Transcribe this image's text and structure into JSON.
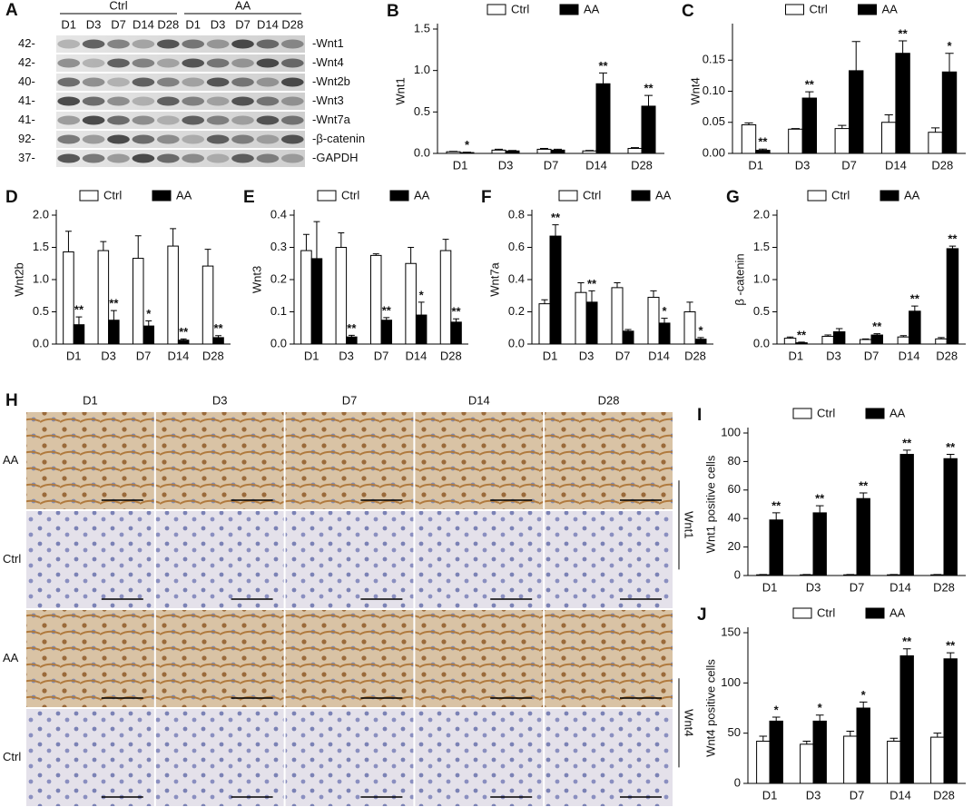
{
  "blot": {
    "panel": "A",
    "groups": [
      "Ctrl",
      "AA"
    ],
    "lanes": [
      "D1",
      "D3",
      "D7",
      "D14",
      "D28",
      "D1",
      "D3",
      "D7",
      "D14",
      "D28"
    ],
    "rows": [
      {
        "mw": "42-",
        "label": "-Wnt1"
      },
      {
        "mw": "42-",
        "label": "-Wnt4"
      },
      {
        "mw": "40-",
        "label": "-Wnt2b"
      },
      {
        "mw": "41-",
        "label": "-Wnt3"
      },
      {
        "mw": "41-",
        "label": "-Wnt7a"
      },
      {
        "mw": "92-",
        "label": "-β-catenin"
      },
      {
        "mw": "37-",
        "label": "-GAPDH"
      }
    ]
  },
  "histology": {
    "panel": "H",
    "columns": [
      "D1",
      "D3",
      "D7",
      "D14",
      "D28"
    ],
    "rows": [
      "AA",
      "Ctrl",
      "AA",
      "Ctrl"
    ],
    "markers": [
      "Wnt1",
      "Wnt4"
    ]
  },
  "chart_data": [
    {
      "type": "bar",
      "panel": "B",
      "ylabel": "Wnt1",
      "categories": [
        "D1",
        "D3",
        "D7",
        "D14",
        "D28"
      ],
      "ylim": [
        0,
        1.5
      ],
      "yticks": [
        {
          "value": 0,
          "label": "0.0"
        },
        0.5,
        {
          "value": 1,
          "label": "1.0"
        },
        1.5
      ],
      "series": [
        {
          "name": "Ctrl",
          "color": "#ffffff",
          "values": [
            0.02,
            0.04,
            0.05,
            0.03,
            0.06
          ],
          "errors": [
            0.005,
            0.01,
            0.01,
            0.005,
            0.01
          ],
          "stars": [
            null,
            null,
            null,
            null,
            null
          ]
        },
        {
          "name": "AA",
          "color": "#000000",
          "values": [
            0.01,
            0.03,
            0.04,
            0.84,
            0.57
          ],
          "errors": [
            0.005,
            0.005,
            0.01,
            0.13,
            0.13
          ],
          "stars": [
            "*",
            null,
            null,
            "**",
            "**"
          ]
        }
      ]
    },
    {
      "type": "bar",
      "panel": "C",
      "ylabel": "Wnt4",
      "categories": [
        "D1",
        "D3",
        "D7",
        "D14",
        "D28"
      ],
      "ylim": [
        0,
        0.2
      ],
      "yticks": [
        {
          "value": 0,
          "label": "0.00"
        },
        0.05,
        {
          "value": 0.1,
          "label": "0.10"
        },
        0.15
      ],
      "series": [
        {
          "name": "Ctrl",
          "color": "#ffffff",
          "values": [
            0.046,
            0.039,
            0.04,
            0.05,
            0.034
          ],
          "errors": [
            0.003,
            0.001,
            0.005,
            0.012,
            0.007
          ],
          "stars": [
            null,
            null,
            null,
            null,
            null
          ]
        },
        {
          "name": "AA",
          "color": "#000000",
          "values": [
            0.005,
            0.089,
            0.133,
            0.161,
            0.131
          ],
          "errors": [
            0.002,
            0.01,
            0.047,
            0.02,
            0.03
          ],
          "stars": [
            "**",
            "**",
            null,
            "**",
            "*"
          ]
        }
      ]
    },
    {
      "type": "bar",
      "panel": "D",
      "ylabel": "Wnt2b",
      "categories": [
        "D1",
        "D3",
        "D7",
        "D14",
        "D28"
      ],
      "ylim": [
        0,
        2
      ],
      "yticks": [
        {
          "value": 0,
          "label": "0.0"
        },
        0.5,
        {
          "value": 1,
          "label": "1.0"
        },
        1.5,
        {
          "value": 2,
          "label": "2.0"
        }
      ],
      "series": [
        {
          "name": "Ctrl",
          "color": "#ffffff",
          "values": [
            1.43,
            1.45,
            1.33,
            1.52,
            1.21
          ],
          "errors": [
            0.32,
            0.14,
            0.35,
            0.27,
            0.26
          ],
          "stars": [
            null,
            null,
            null,
            null,
            null
          ]
        },
        {
          "name": "AA",
          "color": "#000000",
          "values": [
            0.3,
            0.37,
            0.28,
            0.06,
            0.1
          ],
          "errors": [
            0.12,
            0.15,
            0.08,
            0.02,
            0.03
          ],
          "stars": [
            "**",
            "**",
            "*",
            "**",
            "**"
          ]
        }
      ]
    },
    {
      "type": "bar",
      "panel": "E",
      "ylabel": "Wnt3",
      "categories": [
        "D1",
        "D3",
        "D7",
        "D14",
        "D28"
      ],
      "ylim": [
        0,
        0.4
      ],
      "yticks": [
        {
          "value": 0,
          "label": "0.0"
        },
        0.1,
        0.2,
        0.3,
        0.4
      ],
      "series": [
        {
          "name": "Ctrl",
          "color": "#ffffff",
          "values": [
            0.29,
            0.3,
            0.275,
            0.25,
            0.29
          ],
          "errors": [
            0.05,
            0.045,
            0.005,
            0.05,
            0.035
          ],
          "stars": [
            null,
            null,
            null,
            null,
            null
          ]
        },
        {
          "name": "AA",
          "color": "#000000",
          "values": [
            0.265,
            0.022,
            0.074,
            0.09,
            0.068
          ],
          "errors": [
            0.115,
            0.005,
            0.008,
            0.04,
            0.01
          ],
          "stars": [
            null,
            "**",
            "**",
            "*",
            "**"
          ]
        }
      ]
    },
    {
      "type": "bar",
      "panel": "F",
      "ylabel": "Wnt7a",
      "categories": [
        "D1",
        "D3",
        "D7",
        "D14",
        "D28"
      ],
      "ylim": [
        0,
        0.8
      ],
      "yticks": [
        {
          "value": 0,
          "label": "0.0"
        },
        0.2,
        0.4,
        0.6,
        0.8
      ],
      "series": [
        {
          "name": "Ctrl",
          "color": "#ffffff",
          "values": [
            0.25,
            0.32,
            0.35,
            0.29,
            0.2
          ],
          "errors": [
            0.025,
            0.06,
            0.03,
            0.04,
            0.06
          ],
          "stars": [
            null,
            null,
            null,
            null,
            null
          ]
        },
        {
          "name": "AA",
          "color": "#000000",
          "values": [
            0.67,
            0.26,
            0.08,
            0.13,
            0.03
          ],
          "errors": [
            0.07,
            0.07,
            0.01,
            0.03,
            0.01
          ],
          "stars": [
            "**",
            "**",
            null,
            "*",
            "*"
          ]
        }
      ]
    },
    {
      "type": "bar",
      "panel": "G",
      "ylabel": "β -catenin",
      "categories": [
        "D1",
        "D3",
        "D7",
        "D14",
        "D28"
      ],
      "ylim": [
        0,
        2
      ],
      "yticks": [
        {
          "value": 0,
          "label": "0.0"
        },
        0.5,
        {
          "value": 1,
          "label": "1.0"
        },
        1.5,
        {
          "value": 2,
          "label": "2.0"
        }
      ],
      "series": [
        {
          "name": "Ctrl",
          "color": "#ffffff",
          "values": [
            0.09,
            0.12,
            0.07,
            0.11,
            0.08
          ],
          "errors": [
            0.02,
            0.02,
            0.01,
            0.02,
            0.02
          ],
          "stars": [
            null,
            null,
            null,
            null,
            null
          ]
        },
        {
          "name": "AA",
          "color": "#000000",
          "values": [
            0.02,
            0.19,
            0.14,
            0.51,
            1.48
          ],
          "errors": [
            0.01,
            0.05,
            0.02,
            0.08,
            0.04
          ],
          "stars": [
            "**",
            null,
            "**",
            "**",
            "**"
          ]
        }
      ]
    },
    {
      "type": "bar",
      "panel": "I",
      "ylabel": "Wnt1 positive cells",
      "categories": [
        "D1",
        "D3",
        "D7",
        "D14",
        "D28"
      ],
      "ylim": [
        0,
        100
      ],
      "yticks": [
        0,
        20,
        40,
        60,
        80,
        100
      ],
      "series": [
        {
          "name": "Ctrl",
          "color": "#ffffff",
          "values": [
            0.5,
            0.5,
            0.5,
            0.5,
            0.5
          ],
          "errors": [
            0.2,
            0.2,
            0.2,
            0.2,
            0.2
          ],
          "stars": [
            null,
            null,
            null,
            null,
            null
          ]
        },
        {
          "name": "AA",
          "color": "#000000",
          "values": [
            39,
            44,
            54,
            85,
            82
          ],
          "errors": [
            5,
            5,
            4,
            3,
            3
          ],
          "stars": [
            "**",
            "**",
            "**",
            "**",
            "**"
          ]
        }
      ]
    },
    {
      "type": "bar",
      "panel": "J",
      "ylabel": "Wnt4 positive cells",
      "categories": [
        "D1",
        "D3",
        "D7",
        "D14",
        "D28"
      ],
      "ylim": [
        0,
        150
      ],
      "yticks": [
        0,
        50,
        100,
        150
      ],
      "series": [
        {
          "name": "Ctrl",
          "color": "#ffffff",
          "values": [
            42,
            39,
            47,
            42,
            46
          ],
          "errors": [
            5,
            3,
            5,
            3,
            4
          ],
          "stars": [
            null,
            null,
            null,
            null,
            null
          ]
        },
        {
          "name": "AA",
          "color": "#000000",
          "values": [
            62,
            62,
            75,
            127,
            124
          ],
          "errors": [
            4,
            6,
            6,
            7,
            6
          ],
          "stars": [
            "*",
            "*",
            "*",
            "**",
            "**"
          ]
        }
      ]
    }
  ]
}
